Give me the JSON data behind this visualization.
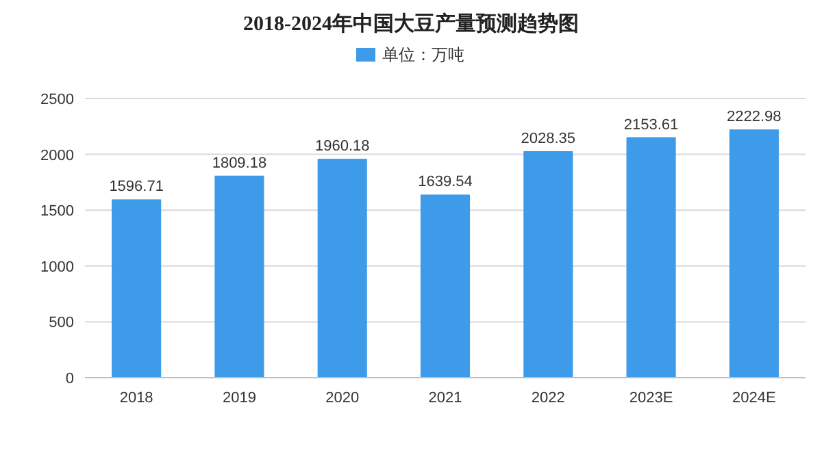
{
  "chart_data": {
    "type": "bar",
    "title": "2018-2024年中国大豆产量预测趋势图",
    "categories": [
      "2018",
      "2019",
      "2020",
      "2021",
      "2022",
      "2023E",
      "2024E"
    ],
    "series": [
      {
        "name": "单位：万吨",
        "color": "#3d9be9",
        "values": [
          1596.71,
          1809.18,
          1960.18,
          1639.54,
          2028.35,
          2153.61,
          2222.98
        ]
      }
    ],
    "ylim": [
      0,
      2500
    ],
    "yticks": [
      0,
      500,
      1000,
      1500,
      2000,
      2500
    ],
    "grid": "y",
    "legend": "top",
    "data_labels": true
  }
}
